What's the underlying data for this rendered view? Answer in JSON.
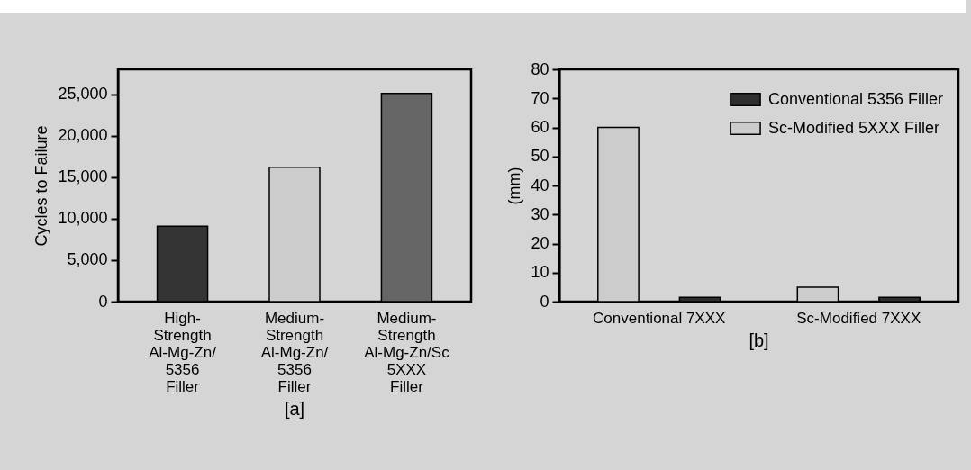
{
  "chart_data": [
    {
      "type": "bar",
      "title": "[a]",
      "ylabel": "Cycles to Failure",
      "categories": [
        "High-\nStrength\nAl-Mg-Zn/\n5356\nFiller",
        "Medium-\nStrength\nAl-Mg-Zn/\n5356\nFiller",
        "Medium-\nStrength\nAl-Mg-Zn/Sc\n5XXX\nFiller"
      ],
      "values": [
        9100,
        16200,
        25100
      ],
      "colors": [
        "#333333",
        "#cccccc",
        "#666666"
      ],
      "ylim": [
        0,
        28000
      ],
      "yticks": [
        0,
        {
          "value": 5000,
          "label": "5,000"
        },
        {
          "value": 10000,
          "label": "10,000"
        },
        {
          "value": 15000,
          "label": "15,000"
        },
        {
          "value": 20000,
          "label": "20,000"
        },
        {
          "value": 25000,
          "label": "25,000"
        }
      ]
    },
    {
      "type": "bar",
      "title": "[b]",
      "ylabel": "(mm)",
      "categories": [
        "Conventional 7XXX",
        "Sc-Modified 7XXX"
      ],
      "series": [
        {
          "name": "Conventional 5356 Filler",
          "color": "#2e2e2e",
          "values": [
            1.5,
            1.5
          ]
        },
        {
          "name": "Sc-Modified 5XXX Filler",
          "color": "#cccccc",
          "values": [
            60,
            5
          ]
        }
      ],
      "ylim": [
        0,
        80
      ],
      "yticks": [
        0,
        10,
        20,
        30,
        40,
        50,
        60,
        70,
        80
      ],
      "legend": "top right"
    }
  ]
}
